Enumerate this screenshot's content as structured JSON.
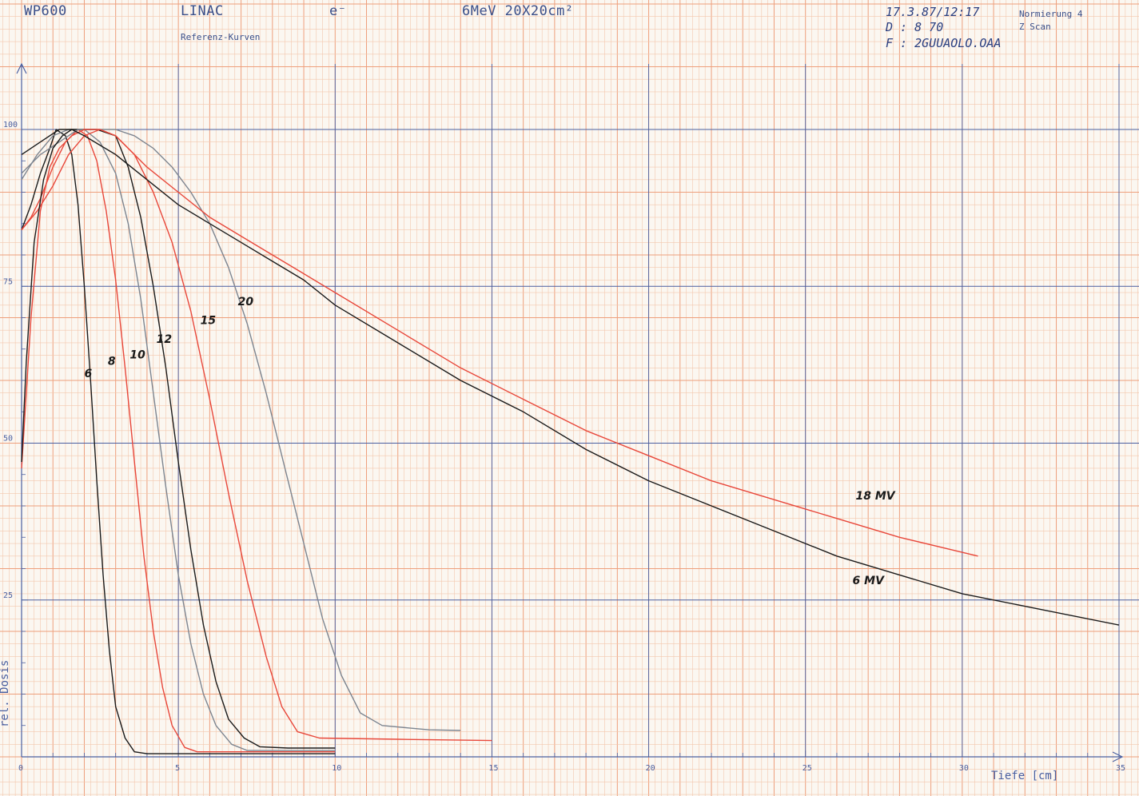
{
  "header": {
    "device": "WP600",
    "machine": "LINAC",
    "particle": "e⁻",
    "energy_field": "6MeV 20X20cm²",
    "subtitle": "Referenz-Kurven",
    "datetime": "17.3.87/12:17",
    "d_value": "D : 8 70",
    "file": "F : 2GUUAOLO.OAA",
    "normalization": "Normierung  4",
    "scan": "Z Scan"
  },
  "colors": {
    "paper": "#fbf7f1",
    "grid_fine": "#f3c7ad",
    "grid_mid": "#ee9f7c",
    "grid_major": "#4a5fa0",
    "ink_black": "#1a1a1a",
    "ink_red": "#e8473a",
    "ink_gray": "#7d8590"
  },
  "chart_data": {
    "type": "line",
    "xlabel": "Tiefe [cm]",
    "ylabel": "rel. Dosis",
    "xlim": [
      0,
      35
    ],
    "ylim": [
      0,
      100
    ],
    "x_ticks": [
      0,
      5,
      10,
      15,
      20,
      25,
      30,
      35
    ],
    "y_ticks": [
      25,
      50,
      75,
      100
    ],
    "grid": true,
    "series": [
      {
        "name": "6",
        "color": "black",
        "points": [
          [
            0,
            84
          ],
          [
            0.3,
            88
          ],
          [
            0.6,
            93
          ],
          [
            0.9,
            97
          ],
          [
            1.1,
            100
          ],
          [
            1.4,
            99
          ],
          [
            1.6,
            96
          ],
          [
            1.8,
            88
          ],
          [
            2.0,
            75
          ],
          [
            2.2,
            60
          ],
          [
            2.4,
            44
          ],
          [
            2.6,
            29
          ],
          [
            2.8,
            17
          ],
          [
            3.0,
            8
          ],
          [
            3.3,
            3
          ],
          [
            3.6,
            0.8
          ],
          [
            4.0,
            0.5
          ],
          [
            6,
            0.5
          ],
          [
            8,
            0.5
          ],
          [
            10,
            0.5
          ]
        ]
      },
      {
        "name": "8",
        "color": "red",
        "points": [
          [
            0,
            84
          ],
          [
            0.3,
            86
          ],
          [
            0.6,
            89
          ],
          [
            1.0,
            94
          ],
          [
            1.4,
            98
          ],
          [
            1.8,
            100
          ],
          [
            2.1,
            99
          ],
          [
            2.4,
            95
          ],
          [
            2.7,
            87
          ],
          [
            3.0,
            76
          ],
          [
            3.3,
            62
          ],
          [
            3.6,
            47
          ],
          [
            3.9,
            32
          ],
          [
            4.2,
            20
          ],
          [
            4.5,
            11
          ],
          [
            4.8,
            5
          ],
          [
            5.2,
            1.5
          ],
          [
            5.6,
            0.8
          ],
          [
            7,
            0.8
          ],
          [
            10,
            0.8
          ]
        ]
      },
      {
        "name": "10",
        "color": "gray",
        "points": [
          [
            0,
            92
          ],
          [
            0.5,
            96
          ],
          [
            1.0,
            99
          ],
          [
            1.5,
            100
          ],
          [
            2.0,
            100
          ],
          [
            2.5,
            98
          ],
          [
            3.0,
            93
          ],
          [
            3.4,
            85
          ],
          [
            3.8,
            73
          ],
          [
            4.2,
            58
          ],
          [
            4.6,
            43
          ],
          [
            5.0,
            29
          ],
          [
            5.4,
            18
          ],
          [
            5.8,
            10
          ],
          [
            6.2,
            5
          ],
          [
            6.7,
            2
          ],
          [
            7.2,
            1.0
          ],
          [
            8,
            1.0
          ],
          [
            10,
            1.0
          ]
        ]
      },
      {
        "name": "12",
        "color": "black",
        "points": [
          [
            0,
            96
          ],
          [
            0.6,
            98
          ],
          [
            1.2,
            100
          ],
          [
            1.8,
            100
          ],
          [
            2.4,
            100
          ],
          [
            3.0,
            99
          ],
          [
            3.4,
            94
          ],
          [
            3.8,
            86
          ],
          [
            4.2,
            75
          ],
          [
            4.6,
            62
          ],
          [
            5.0,
            47
          ],
          [
            5.4,
            33
          ],
          [
            5.8,
            21
          ],
          [
            6.2,
            12
          ],
          [
            6.6,
            6
          ],
          [
            7.1,
            3
          ],
          [
            7.6,
            1.6
          ],
          [
            8.5,
            1.4
          ],
          [
            10,
            1.4
          ]
        ]
      },
      {
        "name": "15",
        "color": "red",
        "points": [
          [
            0,
            84
          ],
          [
            0.5,
            87
          ],
          [
            1.0,
            91
          ],
          [
            1.5,
            96
          ],
          [
            2.0,
            99
          ],
          [
            2.5,
            100
          ],
          [
            3.0,
            99
          ],
          [
            3.6,
            96
          ],
          [
            4.2,
            90
          ],
          [
            4.8,
            82
          ],
          [
            5.4,
            71
          ],
          [
            6.0,
            57
          ],
          [
            6.6,
            42
          ],
          [
            7.2,
            28
          ],
          [
            7.8,
            16
          ],
          [
            8.3,
            8
          ],
          [
            8.8,
            4
          ],
          [
            9.5,
            3
          ],
          [
            12,
            2.8
          ],
          [
            15,
            2.6
          ]
        ]
      },
      {
        "name": "20",
        "color": "gray",
        "points": [
          [
            0,
            93
          ],
          [
            0.6,
            96
          ],
          [
            1.2,
            98
          ],
          [
            1.8,
            100
          ],
          [
            2.4,
            100
          ],
          [
            3.0,
            100
          ],
          [
            3.6,
            99
          ],
          [
            4.2,
            97
          ],
          [
            4.8,
            94
          ],
          [
            5.4,
            90
          ],
          [
            6.0,
            85
          ],
          [
            6.6,
            78
          ],
          [
            7.2,
            69
          ],
          [
            7.8,
            58
          ],
          [
            8.4,
            46
          ],
          [
            9.0,
            34
          ],
          [
            9.6,
            22
          ],
          [
            10.2,
            13
          ],
          [
            10.8,
            7
          ],
          [
            11.5,
            5
          ],
          [
            13,
            4.3
          ],
          [
            14,
            4.2
          ]
        ]
      },
      {
        "name": "18 MV",
        "color": "red",
        "points": [
          [
            0,
            46
          ],
          [
            0.3,
            70
          ],
          [
            0.6,
            87
          ],
          [
            0.9,
            94
          ],
          [
            1.2,
            97
          ],
          [
            1.6,
            99
          ],
          [
            2.0,
            100
          ],
          [
            2.5,
            100
          ],
          [
            3.0,
            99
          ],
          [
            4.0,
            94
          ],
          [
            5,
            90
          ],
          [
            6,
            86
          ],
          [
            7,
            83
          ],
          [
            8,
            80
          ],
          [
            9,
            77
          ],
          [
            10,
            74
          ],
          [
            12,
            68
          ],
          [
            14,
            62
          ],
          [
            16,
            57
          ],
          [
            18,
            52
          ],
          [
            20,
            48
          ],
          [
            22,
            44
          ],
          [
            24,
            41
          ],
          [
            26,
            38
          ],
          [
            28,
            35
          ],
          [
            30.5,
            32
          ]
        ]
      },
      {
        "name": "6 MV",
        "color": "black",
        "points": [
          [
            0,
            47
          ],
          [
            0.15,
            63
          ],
          [
            0.4,
            82
          ],
          [
            0.7,
            92
          ],
          [
            1.0,
            97
          ],
          [
            1.3,
            99
          ],
          [
            1.6,
            100
          ],
          [
            2.0,
            99
          ],
          [
            3,
            96
          ],
          [
            4,
            92
          ],
          [
            5,
            88
          ],
          [
            6,
            85
          ],
          [
            7,
            82
          ],
          [
            8,
            79
          ],
          [
            9,
            76
          ],
          [
            10,
            72
          ],
          [
            12,
            66
          ],
          [
            14,
            60
          ],
          [
            16,
            55
          ],
          [
            18,
            49
          ],
          [
            20,
            44
          ],
          [
            22,
            40
          ],
          [
            24,
            36
          ],
          [
            26,
            32
          ],
          [
            28,
            29
          ],
          [
            30,
            26
          ],
          [
            32,
            24
          ],
          [
            35,
            21
          ]
        ]
      }
    ]
  }
}
